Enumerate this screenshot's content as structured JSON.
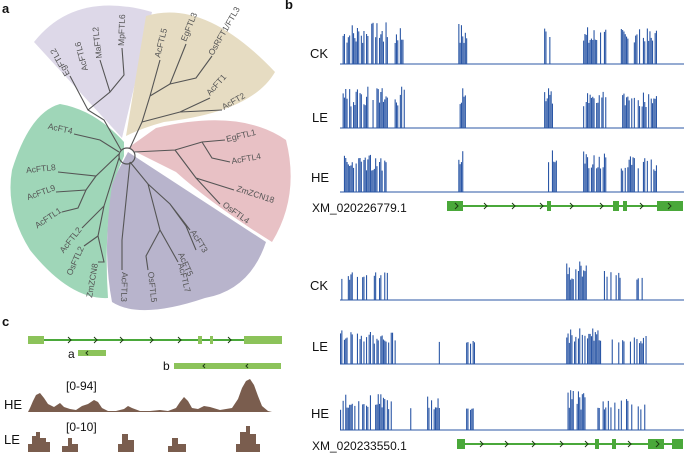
{
  "panels": {
    "a": "a",
    "b": "b",
    "c": "c"
  },
  "tree": {
    "groups": [
      {
        "name": "purple-top",
        "color": "#ddd8e8",
        "leaves": [
          "EgFTL2",
          "AcFTL6",
          "MaFTL2",
          "MpFTL6"
        ]
      },
      {
        "name": "tan",
        "color": "#e6dcc2",
        "leaves": [
          "AcFTL5",
          "EgFTL3",
          "OsRFT1/FTL3",
          "AcFT1",
          "AcFT2"
        ]
      },
      {
        "name": "pink",
        "color": "#e8c1c5",
        "leaves": [
          "EgFTL1",
          "AcFTL4",
          "ZmZCN18",
          "OsFTL4"
        ]
      },
      {
        "name": "slate",
        "color": "#b8b4cc",
        "leaves": [
          "AcFT3",
          "AcFT5",
          "AcFTL7",
          "OsFTL5",
          "AcFTL3"
        ]
      },
      {
        "name": "green",
        "color": "#9fd6b8",
        "leaves": [
          "AcFT4",
          "AcFTL8",
          "AcFTL9",
          "AcFTL1",
          "AcFTL2",
          "OsFTL2",
          "ZmZCN8"
        ]
      }
    ]
  },
  "panel_b": {
    "genes": [
      {
        "id": "XM_020226779.1",
        "tracks": [
          "CK",
          "LE",
          "HE"
        ]
      },
      {
        "id": "XM_020233550.1",
        "tracks": [
          "CK",
          "LE",
          "HE"
        ]
      }
    ],
    "track_color": "#2b57a6",
    "gene_color": "#4aa83a"
  },
  "panel_c": {
    "segments": [
      "a",
      "b"
    ],
    "tracks": [
      {
        "name": "HE",
        "range": "[0-94]"
      },
      {
        "name": "LE",
        "range": "[0-10]"
      }
    ],
    "coverage_color": "#7a5d4e",
    "segment_color": "#8cc35a"
  }
}
